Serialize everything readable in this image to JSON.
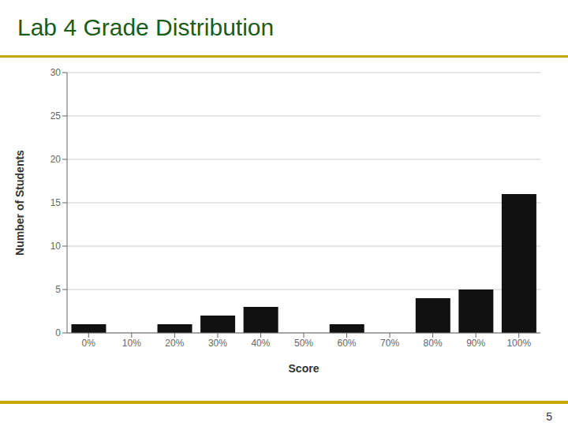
{
  "chart_data": {
    "type": "bar",
    "title": "Lab 4 Grade Distribution",
    "xlabel": "Score",
    "ylabel": "Number of Students",
    "categories": [
      "0%",
      "10%",
      "20%",
      "30%",
      "40%",
      "50%",
      "60%",
      "70%",
      "80%",
      "90%",
      "100%"
    ],
    "values": [
      1,
      0,
      1,
      2,
      3,
      0,
      1,
      0,
      4,
      5,
      16
    ],
    "color": "#111111",
    "ylim": [
      0,
      30
    ],
    "yticks": [
      0,
      5,
      10,
      15,
      20,
      25,
      30
    ],
    "grid": true,
    "annotations": [
      "5"
    ]
  }
}
